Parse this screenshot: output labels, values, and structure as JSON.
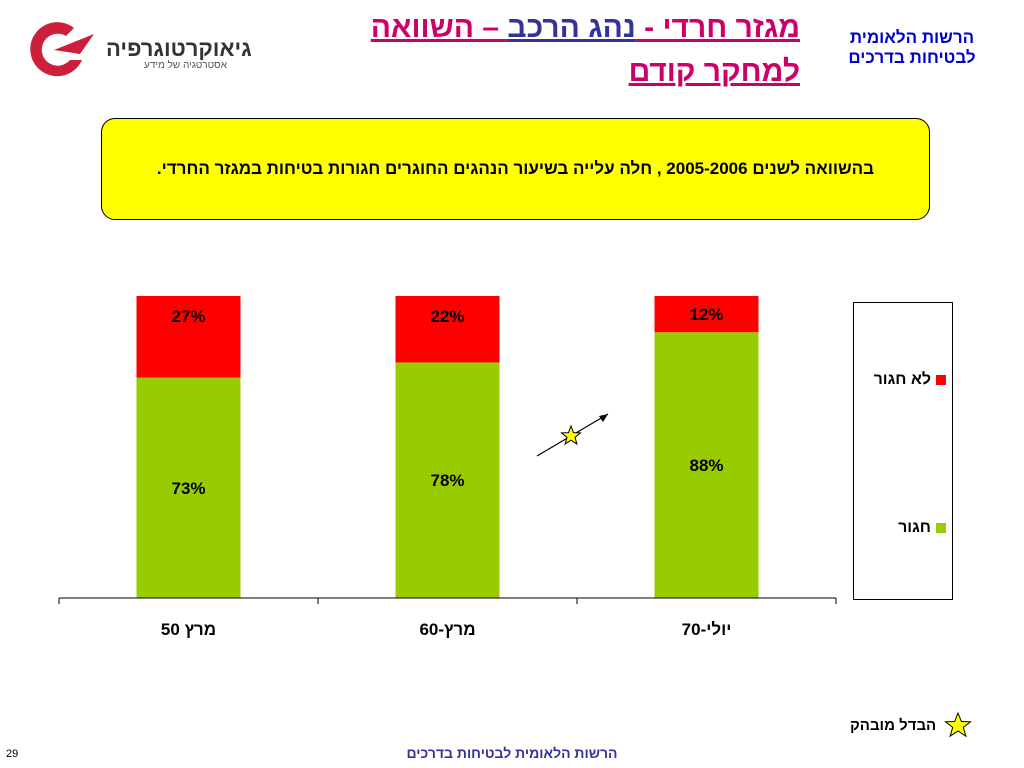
{
  "logo": {
    "brand": "גיאוקרטוגרפיה",
    "tagline": "אסטרטגיה של מידע"
  },
  "title": {
    "line1_part1": "מגזר חרדי - ",
    "line1_part2": "נהג הרכב",
    "line1_part3": " – השוואה",
    "line2": "למחקר קודם"
  },
  "org_top": {
    "line1": "הרשות הלאומית",
    "line2": "לבטיחות בדרכים"
  },
  "callout": {
    "text": "בהשוואה לשנים 2005-2006 , חלה עלייה בשיעור הנהגים החוגרים חגורות בטיחות במגזר החרדי."
  },
  "colors": {
    "belted": "#99cc00",
    "unbelted": "#ff0000",
    "callout_bg": "#ffff00",
    "title_pink": "#cc0066",
    "title_blue": "#333399",
    "org_blue": "#0000cc"
  },
  "chart_data": {
    "type": "bar",
    "stacked": true,
    "categories": [
      "מרץ 50",
      "מרץ-60",
      "יולי-70"
    ],
    "series": [
      {
        "name": "חגור",
        "values": [
          73,
          78,
          88
        ],
        "labels": [
          "73%",
          "78%",
          "88%"
        ],
        "color": "#99cc00"
      },
      {
        "name": "לא חגור",
        "values": [
          27,
          22,
          12
        ],
        "labels": [
          "27%",
          "22%",
          "12%"
        ],
        "color": "#ff0000"
      }
    ],
    "ylim": [
      0,
      100
    ],
    "legend_position": "right"
  },
  "legend": {
    "items": [
      {
        "label": "לא חגור",
        "color": "#ff0000"
      },
      {
        "label": "חגור",
        "color": "#99cc00"
      }
    ]
  },
  "significance": {
    "label": "הבדל מובהק",
    "icon": "star-icon"
  },
  "footer": {
    "org": "הרשות הלאומית לבטיחות בדרכים",
    "page_number": "29"
  }
}
